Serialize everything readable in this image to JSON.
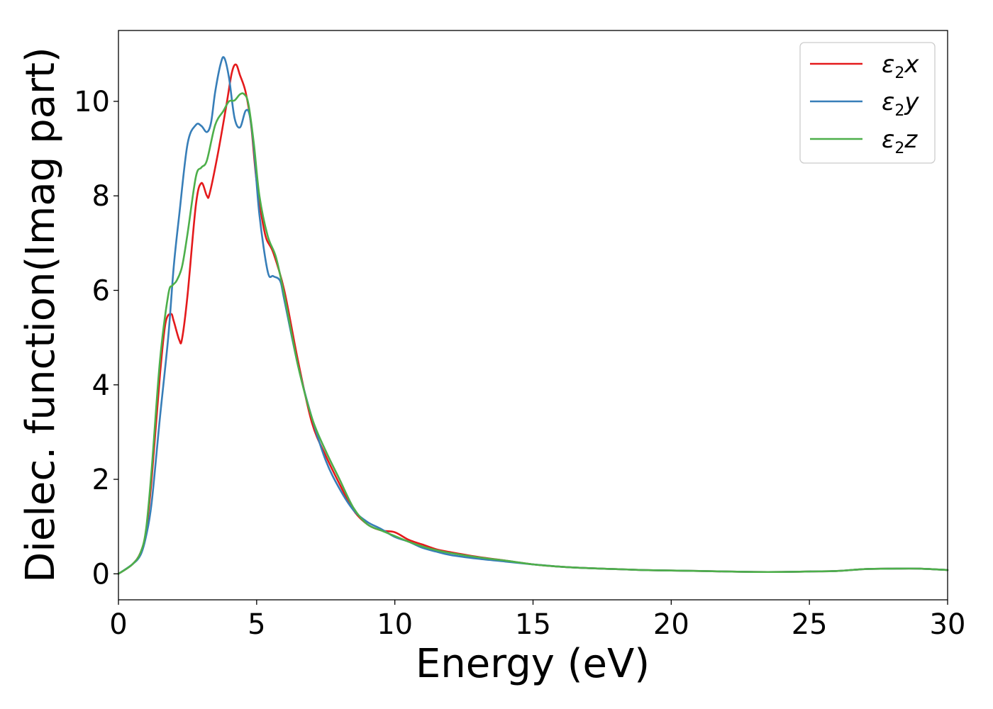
{
  "chart_data": {
    "type": "line",
    "title": "",
    "xlabel": "Energy (eV)",
    "ylabel": "Dielec. function(Imag part)",
    "xlim": [
      0,
      30
    ],
    "ylim": [
      -0.55,
      11.5
    ],
    "xticks": [
      0,
      5,
      10,
      15,
      20,
      25,
      30
    ],
    "yticks": [
      0,
      2,
      4,
      6,
      8,
      10
    ],
    "xtick_labels": [
      "0",
      "5",
      "10",
      "15",
      "20",
      "25",
      "30"
    ],
    "ytick_labels": [
      "0",
      "2",
      "4",
      "6",
      "8",
      "10"
    ],
    "grid": false,
    "legend_position": "top-right",
    "series": [
      {
        "name": "ε2x",
        "legend_symbol": "ε",
        "legend_sub": "2",
        "legend_var": "x",
        "color": "#e41a1c",
        "x": [
          0,
          0.5,
          0.8,
          1.0,
          1.2,
          1.5,
          1.7,
          1.9,
          2.0,
          2.2,
          2.3,
          2.5,
          2.8,
          3.0,
          3.2,
          3.3,
          3.6,
          3.9,
          4.1,
          4.25,
          4.4,
          4.6,
          4.8,
          5.0,
          5.3,
          5.6,
          6.0,
          6.5,
          7.0,
          7.5,
          8.0,
          8.5,
          9.0,
          9.5,
          10.0,
          10.5,
          11.0,
          11.5,
          12.0,
          13.0,
          14.0,
          15.0,
          16.0,
          17.0,
          18.0,
          19.0,
          20.0,
          21.0,
          22.0,
          23.0,
          24.0,
          25.0,
          26.0,
          27.0,
          28.0,
          29.0,
          30.0
        ],
        "y": [
          0,
          0.2,
          0.45,
          0.9,
          2.0,
          4.2,
          5.3,
          5.5,
          5.35,
          4.95,
          4.97,
          5.9,
          7.8,
          8.27,
          8.0,
          8.05,
          8.9,
          9.9,
          10.6,
          10.78,
          10.55,
          10.2,
          9.5,
          8.3,
          7.2,
          6.8,
          6.0,
          4.5,
          3.2,
          2.5,
          1.9,
          1.35,
          1.05,
          0.92,
          0.88,
          0.72,
          0.62,
          0.52,
          0.46,
          0.36,
          0.28,
          0.2,
          0.15,
          0.12,
          0.1,
          0.08,
          0.07,
          0.06,
          0.05,
          0.04,
          0.04,
          0.05,
          0.06,
          0.1,
          0.11,
          0.11,
          0.08
        ]
      },
      {
        "name": "ε2y",
        "legend_symbol": "ε",
        "legend_sub": "2",
        "legend_var": "y",
        "color": "#377eb8",
        "x": [
          0,
          0.5,
          0.8,
          1.0,
          1.2,
          1.5,
          1.8,
          2.0,
          2.2,
          2.5,
          2.8,
          3.0,
          3.2,
          3.35,
          3.5,
          3.7,
          3.83,
          4.0,
          4.2,
          4.4,
          4.6,
          4.75,
          4.9,
          5.1,
          5.4,
          5.6,
          5.85,
          6.0,
          6.5,
          7.0,
          7.5,
          8.0,
          8.5,
          9.0,
          9.5,
          10.0,
          10.5,
          11.0,
          11.5,
          12.0,
          13.0,
          14.0,
          15.0,
          16.0,
          17.0,
          18.0,
          19.0,
          20.0,
          21.0,
          22.0,
          23.0,
          24.0,
          25.0,
          26.0,
          27.0,
          28.0,
          29.0,
          30.0
        ],
        "y": [
          0,
          0.2,
          0.4,
          0.8,
          1.5,
          3.3,
          5.0,
          6.5,
          7.6,
          9.1,
          9.5,
          9.48,
          9.35,
          9.55,
          10.2,
          10.8,
          10.92,
          10.5,
          9.65,
          9.45,
          9.8,
          9.7,
          9.0,
          7.6,
          6.4,
          6.3,
          6.2,
          5.8,
          4.4,
          3.3,
          2.4,
          1.8,
          1.35,
          1.1,
          0.95,
          0.78,
          0.68,
          0.55,
          0.47,
          0.4,
          0.32,
          0.26,
          0.2,
          0.15,
          0.12,
          0.1,
          0.08,
          0.07,
          0.06,
          0.05,
          0.04,
          0.04,
          0.05,
          0.06,
          0.1,
          0.11,
          0.11,
          0.08
        ]
      },
      {
        "name": "ε2z",
        "legend_symbol": "ε",
        "legend_sub": "2",
        "legend_var": "z",
        "color": "#4daf4a",
        "x": [
          0,
          0.5,
          0.8,
          1.0,
          1.2,
          1.5,
          1.8,
          1.95,
          2.1,
          2.3,
          2.5,
          2.8,
          3.0,
          3.2,
          3.5,
          3.8,
          4.0,
          4.2,
          4.4,
          4.55,
          4.7,
          4.9,
          5.1,
          5.4,
          5.7,
          6.0,
          6.5,
          7.0,
          7.5,
          8.0,
          8.5,
          9.0,
          9.5,
          10.0,
          10.5,
          11.0,
          11.5,
          12.0,
          13.0,
          14.0,
          15.0,
          16.0,
          17.0,
          18.0,
          19.0,
          20.0,
          21.0,
          22.0,
          23.0,
          24.0,
          25.0,
          26.0,
          27.0,
          28.0,
          29.0,
          30.0
        ],
        "y": [
          0,
          0.2,
          0.45,
          0.95,
          2.2,
          4.5,
          5.9,
          6.1,
          6.2,
          6.5,
          7.2,
          8.4,
          8.6,
          8.75,
          9.5,
          9.8,
          10.0,
          10.02,
          10.15,
          10.15,
          9.95,
          9.1,
          8.0,
          7.15,
          6.7,
          5.9,
          4.4,
          3.3,
          2.6,
          2.0,
          1.4,
          1.05,
          0.92,
          0.8,
          0.68,
          0.58,
          0.5,
          0.44,
          0.35,
          0.28,
          0.2,
          0.15,
          0.12,
          0.1,
          0.08,
          0.07,
          0.06,
          0.05,
          0.04,
          0.04,
          0.05,
          0.06,
          0.1,
          0.11,
          0.11,
          0.08
        ]
      }
    ]
  }
}
